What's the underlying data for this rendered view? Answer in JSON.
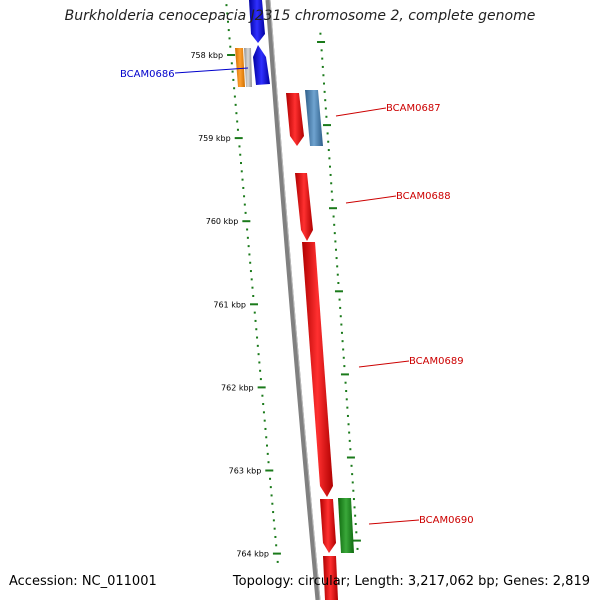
{
  "title": "Burkholderia cenocepacia J2315 chromosome 2, complete genome",
  "footer": {
    "accession": "Accession: NC_011001",
    "topology": "Topology: circular; Length: 3,217,062 bp; Genes: 2,819"
  },
  "ruler": {
    "labels": [
      "758 kbp",
      "759 kbp",
      "760 kbp",
      "761 kbp",
      "762 kbp",
      "763 kbp",
      "764 kbp"
    ],
    "tick_color": "#1a7a1a"
  },
  "genes": [
    {
      "name": "BCAM0686",
      "color": "#0000cc"
    },
    {
      "name": "BCAM0687",
      "color": "#cc0000"
    },
    {
      "name": "BCAM0688",
      "color": "#cc0000"
    },
    {
      "name": "BCAM0689",
      "color": "#cc0000"
    },
    {
      "name": "BCAM0690",
      "color": "#cc0000"
    }
  ],
  "feature_colors": {
    "cds_forward": "#ee0000",
    "cds_reverse": "#0000ee",
    "orange": "#f28c00",
    "grey": "#b0b0b0",
    "steelblue": "#4682b4",
    "green": "#1e8a1e",
    "backbone": "#808080"
  }
}
